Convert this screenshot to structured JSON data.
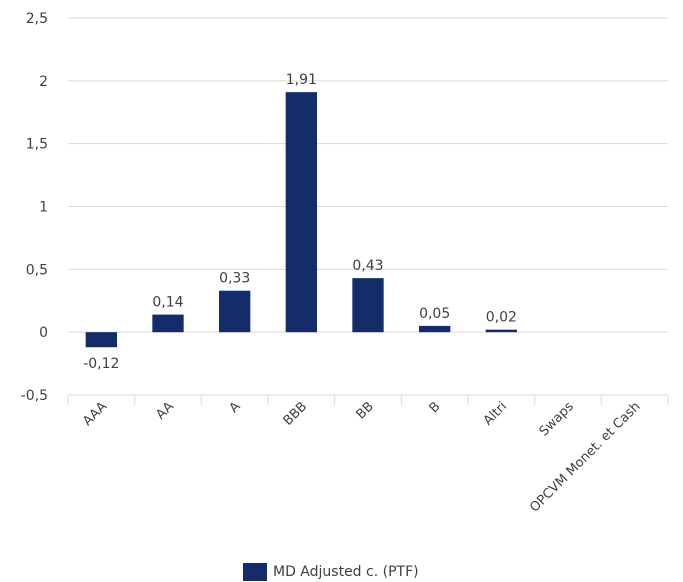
{
  "chart_data": {
    "type": "bar",
    "categories": [
      "AAA",
      "AA",
      "A",
      "BBB",
      "BB",
      "B",
      "Altri",
      "Swaps",
      "OPCVM Monet. et Cash"
    ],
    "series": [
      {
        "name": "MD Adjusted c. (PTF)",
        "values": [
          -0.12,
          0.14,
          0.33,
          1.91,
          0.43,
          0.05,
          0.02,
          null,
          null
        ],
        "labels": [
          "-0,12",
          "0,14",
          "0,33",
          "1,91",
          "0,43",
          "0,05",
          "0,02",
          "",
          ""
        ],
        "color": "#142d6a"
      }
    ],
    "ylim": [
      -0.5,
      2.5
    ],
    "yticks": [
      {
        "value": 2.5,
        "label": "2,5"
      },
      {
        "value": 2,
        "label": "2"
      },
      {
        "value": 1.5,
        "label": "1,5"
      },
      {
        "value": 1,
        "label": "1"
      },
      {
        "value": 0.5,
        "label": "0,5"
      },
      {
        "value": 0,
        "label": "0"
      },
      {
        "value": -0.5,
        "label": "-0,5"
      }
    ],
    "grid": true,
    "legend_position": "bottom-center",
    "title": "",
    "xlabel": "",
    "ylabel": ""
  }
}
